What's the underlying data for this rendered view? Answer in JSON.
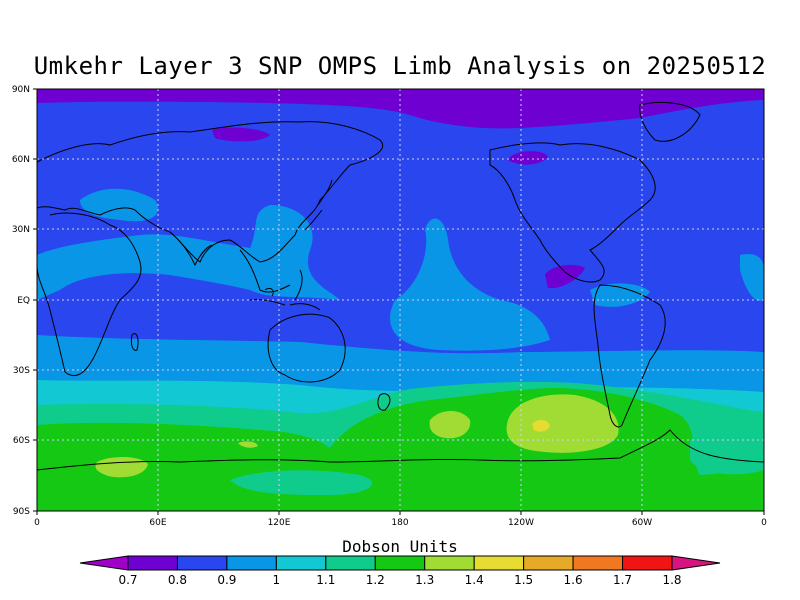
{
  "map": {
    "title": "Umkehr Layer 3 SNP OMPS Limb Analysis on 20250512",
    "lat_labels": [
      "90N",
      "60N",
      "30N",
      "EQ",
      "30S",
      "60S",
      "90S"
    ],
    "lon_labels": [
      "0",
      "60E",
      "120E",
      "180",
      "120W",
      "60W",
      "0"
    ],
    "units_label": "Dobson Units"
  },
  "colorbar": {
    "labels": [
      "0.7",
      "0.8",
      "0.9",
      "1",
      "1.1",
      "1.2",
      "1.3",
      "1.4",
      "1.5",
      "1.6",
      "1.7",
      "1.8"
    ],
    "colors": [
      "#a000c8",
      "#6e00d2",
      "#2a46ee",
      "#0a96e6",
      "#12c8d2",
      "#10cc8c",
      "#14c814",
      "#a0dc34",
      "#e6dc32",
      "#e6aa28",
      "#f07820",
      "#f01414",
      "#d81480"
    ]
  },
  "chart_data": {
    "type": "heatmap",
    "title": "Umkehr Layer 3 SNP OMPS Limb Analysis on 20250512",
    "xlabel": "",
    "ylabel": "",
    "units": "Dobson Units",
    "xlim": [
      0,
      360
    ],
    "ylim": [
      -90,
      90
    ],
    "levels": [
      0.7,
      0.8,
      0.9,
      1.0,
      1.1,
      1.2,
      1.3,
      1.4,
      1.5,
      1.6,
      1.7,
      1.8
    ],
    "features": [
      {
        "level": "0.8-0.9",
        "region": "arctic band 80N-90N"
      },
      {
        "level": "0.9-1.0",
        "region": "most of northern hemisphere and tropics"
      },
      {
        "level": "1.0-1.1",
        "region": "tropical patches and 25S-40S band"
      },
      {
        "level": "1.1-1.2",
        "region": "40S-50S band and patches near Antarctica"
      },
      {
        "level": "1.2-1.3",
        "region": "southern ocean and Antarctica"
      },
      {
        "level": "1.3-1.4",
        "region": "patches 50S-60S near 170W, 90W and 40E"
      },
      {
        "level": "1.4-1.5",
        "region": "small spot near 55S 90W"
      }
    ]
  }
}
